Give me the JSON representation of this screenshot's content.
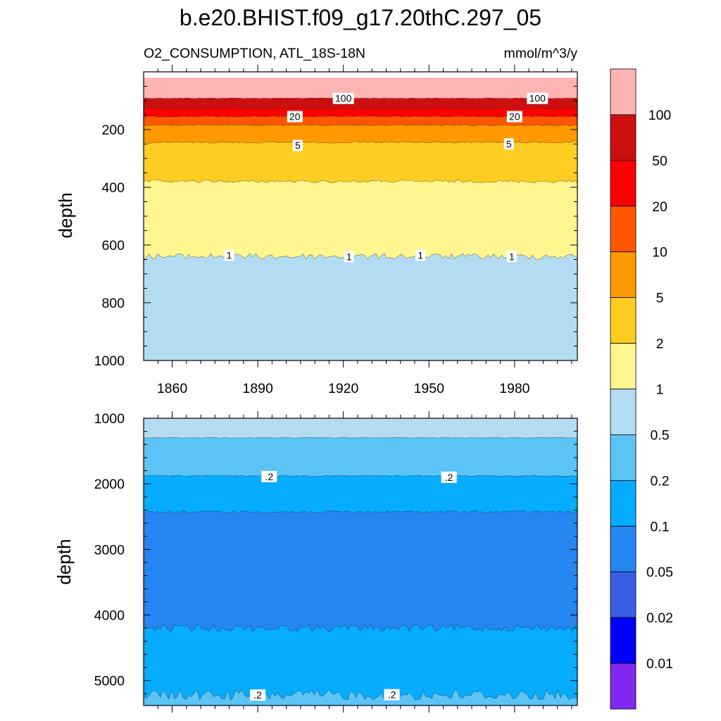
{
  "chart_data": {
    "type": "heatmap",
    "title": "b.e20.BHIST.f09_g17.20thC.297_05",
    "subtitle_left": "O2_CONSUMPTION, ATL_18S-18N",
    "subtitle_right": "mmol/m^3/y",
    "x_range": [
      1850,
      2002
    ],
    "x_ticks": [
      "1860",
      "1890",
      "1920",
      "1950",
      "1980"
    ],
    "x_tick_values": [
      1860,
      1890,
      1920,
      1950,
      1980
    ],
    "panels": [
      {
        "name": "upper",
        "ylabel": "depth",
        "y_range": [
          0,
          1000
        ],
        "y_ticks": [
          "200",
          "400",
          "600",
          "800",
          "1000"
        ],
        "y_tick_values": [
          200,
          400,
          600,
          800,
          1000
        ],
        "data_top": 20,
        "bands": [
          {
            "depth": 92,
            "color": "#ffb3b3"
          },
          {
            "depth": 127,
            "color": "#cc1010"
          },
          {
            "depth": 155,
            "color": "#ff0000"
          },
          {
            "depth": 185,
            "color": "#ff5500"
          },
          {
            "depth": 245,
            "color": "#ff9900"
          },
          {
            "depth": 380,
            "color": "#ffcc22"
          },
          {
            "depth": 640,
            "color": "#fff68f"
          },
          {
            "depth": 1000,
            "color": "#b3dcf2"
          }
        ],
        "contour_labels": [
          {
            "text": "100",
            "x": 1920,
            "depth": 92
          },
          {
            "text": "100",
            "x": 1988,
            "depth": 92
          },
          {
            "text": "20",
            "x": 1903,
            "depth": 155
          },
          {
            "text": "20",
            "x": 1980,
            "depth": 155
          },
          {
            "text": "5",
            "x": 1904,
            "depth": 255
          },
          {
            "text": "5",
            "x": 1978,
            "depth": 250
          },
          {
            "text": "1",
            "x": 1880,
            "depth": 635
          },
          {
            "text": "1",
            "x": 1922,
            "depth": 640
          },
          {
            "text": "1",
            "x": 1947,
            "depth": 635
          },
          {
            "text": "1",
            "x": 1979,
            "depth": 640
          }
        ]
      },
      {
        "name": "lower",
        "ylabel": "depth",
        "y_range": [
          1000,
          5380
        ],
        "y_ticks": [
          "1000",
          "2000",
          "3000",
          "4000",
          "5000"
        ],
        "y_tick_values": [
          1000,
          2000,
          3000,
          4000,
          5000
        ],
        "data_top": 1000,
        "bands": [
          {
            "depth": 1300,
            "color": "#b3dcf2"
          },
          {
            "depth": 1880,
            "color": "#5bc4f5"
          },
          {
            "depth": 2430,
            "color": "#06acff"
          },
          {
            "depth": 4200,
            "color": "#2586f2"
          },
          {
            "depth": 5220,
            "color": "#06acff"
          },
          {
            "depth": 5380,
            "color": "#5bc4f5"
          }
        ],
        "contour_labels": [
          {
            "text": ".2",
            "x": 1894,
            "depth": 1890
          },
          {
            "text": ".2",
            "x": 1957,
            "depth": 1900
          },
          {
            "text": ".2",
            "x": 1890,
            "depth": 5220
          },
          {
            "text": ".2",
            "x": 1937,
            "depth": 5215
          }
        ]
      }
    ],
    "colorbar": {
      "colors_top_to_bottom": [
        "#ffb3b3",
        "#cc1010",
        "#ff0000",
        "#ff5500",
        "#ff9900",
        "#ffcc22",
        "#fff68f",
        "#b3dcf2",
        "#5bc4f5",
        "#06acff",
        "#2586f2",
        "#3a5ee6",
        "#0000ff",
        "#8028f0"
      ],
      "labels": [
        "100",
        "50",
        "20",
        "10",
        "5",
        "2",
        "1",
        "0.5",
        "0.2",
        "0.1",
        "0.05",
        "0.02",
        "0.01"
      ]
    }
  }
}
